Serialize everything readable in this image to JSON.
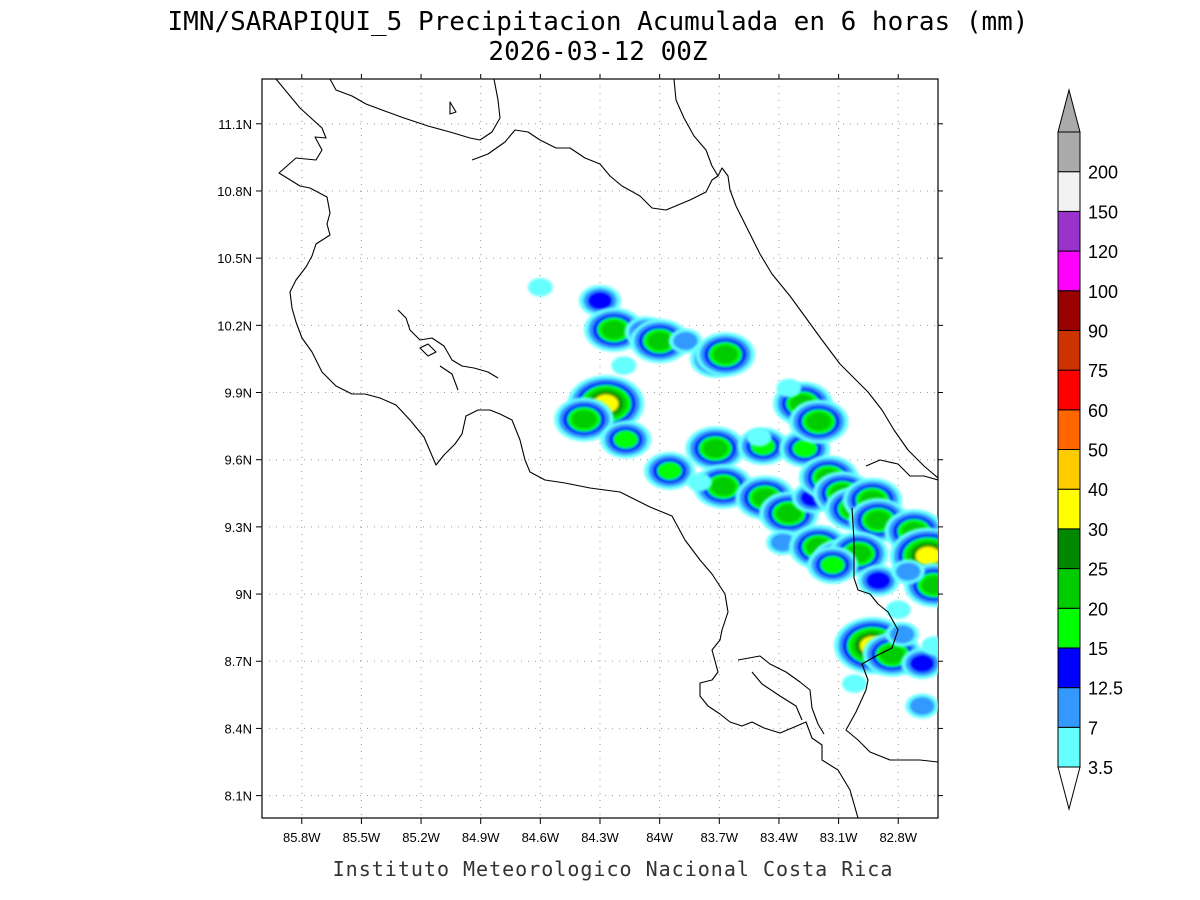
{
  "title": {
    "line1": "IMN/SARAPIQUI_5 Precipitacion Acumulada en 6 horas (mm)",
    "line2": "2026-03-12 00Z"
  },
  "credit": "Instituto Meteorologico Nacional Costa Rica",
  "map": {
    "lon_range": [
      -86.0,
      -82.6
    ],
    "lat_range": [
      8.0,
      11.3
    ],
    "lon_ticks": [
      {
        "value": -85.8,
        "label": "85.8W"
      },
      {
        "value": -85.5,
        "label": "85.5W"
      },
      {
        "value": -85.2,
        "label": "85.2W"
      },
      {
        "value": -84.9,
        "label": "84.9W"
      },
      {
        "value": -84.6,
        "label": "84.6W"
      },
      {
        "value": -84.3,
        "label": "84.3W"
      },
      {
        "value": -84.0,
        "label": "84W"
      },
      {
        "value": -83.7,
        "label": "83.7W"
      },
      {
        "value": -83.4,
        "label": "83.4W"
      },
      {
        "value": -83.1,
        "label": "83.1W"
      },
      {
        "value": -82.8,
        "label": "82.8W"
      }
    ],
    "lat_ticks": [
      {
        "value": 11.1,
        "label": "11.1N"
      },
      {
        "value": 10.8,
        "label": "10.8N"
      },
      {
        "value": 10.5,
        "label": "10.5N"
      },
      {
        "value": 10.2,
        "label": "10.2N"
      },
      {
        "value": 9.9,
        "label": "9.9N"
      },
      {
        "value": 9.6,
        "label": "9.6N"
      },
      {
        "value": 9.3,
        "label": "9.3N"
      },
      {
        "value": 9.0,
        "label": "9N"
      },
      {
        "value": 8.7,
        "label": "8.7N"
      },
      {
        "value": 8.4,
        "label": "8.4N"
      },
      {
        "value": 8.1,
        "label": "8.1N"
      }
    ],
    "grid": true
  },
  "colorbar": {
    "levels": [
      {
        "label": "3.5",
        "color": "#66ffff"
      },
      {
        "label": "7",
        "color": "#3399ff"
      },
      {
        "label": "12.5",
        "color": "#0000ff"
      },
      {
        "label": "15",
        "color": "#00ff00"
      },
      {
        "label": "20",
        "color": "#00cc00"
      },
      {
        "label": "25",
        "color": "#008800"
      },
      {
        "label": "30",
        "color": "#ffff00"
      },
      {
        "label": "40",
        "color": "#ffcc00"
      },
      {
        "label": "50",
        "color": "#ff6600"
      },
      {
        "label": "60",
        "color": "#ff0000"
      },
      {
        "label": "75",
        "color": "#cc3300"
      },
      {
        "label": "90",
        "color": "#990000"
      },
      {
        "label": "100",
        "color": "#ff00ff"
      },
      {
        "label": "120",
        "color": "#9933cc"
      },
      {
        "label": "150",
        "color": "#f2f2f2"
      },
      {
        "label": "200",
        "color": "#aaaaaa"
      }
    ],
    "below_color": "#ffffff",
    "above_color": "#aaaaaa"
  },
  "cells": [
    {
      "lon": -84.3,
      "lat": 10.31,
      "amount": 14
    },
    {
      "lon": -84.23,
      "lat": 10.18,
      "amount": 22
    },
    {
      "lon": -84.07,
      "lat": 10.17,
      "amount": 14
    },
    {
      "lon": -84.0,
      "lat": 10.13,
      "amount": 24
    },
    {
      "lon": -83.87,
      "lat": 10.13,
      "amount": 10
    },
    {
      "lon": -83.72,
      "lat": 10.05,
      "amount": 18
    },
    {
      "lon": -83.67,
      "lat": 10.07,
      "amount": 22
    },
    {
      "lon": -84.18,
      "lat": 10.02,
      "amount": 5
    },
    {
      "lon": -84.6,
      "lat": 10.37,
      "amount": 4
    },
    {
      "lon": -84.27,
      "lat": 9.85,
      "amount": 34
    },
    {
      "lon": -84.38,
      "lat": 9.78,
      "amount": 20
    },
    {
      "lon": -84.17,
      "lat": 9.69,
      "amount": 18
    },
    {
      "lon": -83.95,
      "lat": 9.55,
      "amount": 16
    },
    {
      "lon": -83.72,
      "lat": 9.65,
      "amount": 20
    },
    {
      "lon": -83.68,
      "lat": 9.48,
      "amount": 20
    },
    {
      "lon": -83.48,
      "lat": 9.66,
      "amount": 18
    },
    {
      "lon": -83.27,
      "lat": 9.65,
      "amount": 18
    },
    {
      "lon": -83.28,
      "lat": 9.85,
      "amount": 20
    },
    {
      "lon": -83.2,
      "lat": 9.77,
      "amount": 24
    },
    {
      "lon": -83.47,
      "lat": 9.43,
      "amount": 22
    },
    {
      "lon": -83.35,
      "lat": 9.36,
      "amount": 22
    },
    {
      "lon": -83.23,
      "lat": 9.43,
      "amount": 14
    },
    {
      "lon": -83.15,
      "lat": 9.52,
      "amount": 20
    },
    {
      "lon": -83.08,
      "lat": 9.45,
      "amount": 20
    },
    {
      "lon": -83.02,
      "lat": 9.38,
      "amount": 22
    },
    {
      "lon": -82.93,
      "lat": 9.42,
      "amount": 22
    },
    {
      "lon": -82.9,
      "lat": 9.33,
      "amount": 20
    },
    {
      "lon": -83.38,
      "lat": 9.23,
      "amount": 12
    },
    {
      "lon": -83.2,
      "lat": 9.21,
      "amount": 20
    },
    {
      "lon": -83.1,
      "lat": 9.16,
      "amount": 18
    },
    {
      "lon": -83.0,
      "lat": 9.18,
      "amount": 20
    },
    {
      "lon": -83.13,
      "lat": 9.13,
      "amount": 16
    },
    {
      "lon": -82.9,
      "lat": 9.06,
      "amount": 14
    },
    {
      "lon": -82.72,
      "lat": 9.28,
      "amount": 22
    },
    {
      "lon": -82.65,
      "lat": 9.17,
      "amount": 30
    },
    {
      "lon": -82.62,
      "lat": 9.04,
      "amount": 22
    },
    {
      "lon": -82.75,
      "lat": 9.1,
      "amount": 8
    },
    {
      "lon": -82.93,
      "lat": 8.77,
      "amount": 34
    },
    {
      "lon": -82.83,
      "lat": 8.73,
      "amount": 22
    },
    {
      "lon": -82.78,
      "lat": 8.82,
      "amount": 8
    },
    {
      "lon": -82.68,
      "lat": 8.69,
      "amount": 14
    },
    {
      "lon": -83.02,
      "lat": 8.6,
      "amount": 6
    },
    {
      "lon": -82.62,
      "lat": 8.77,
      "amount": 6
    },
    {
      "lon": -82.68,
      "lat": 8.5,
      "amount": 8
    },
    {
      "lon": -82.8,
      "lat": 8.93,
      "amount": 6
    },
    {
      "lon": -83.35,
      "lat": 9.92,
      "amount": 5
    },
    {
      "lon": -83.5,
      "lat": 9.7,
      "amount": 6
    },
    {
      "lon": -83.8,
      "lat": 9.5,
      "amount": 6
    }
  ]
}
